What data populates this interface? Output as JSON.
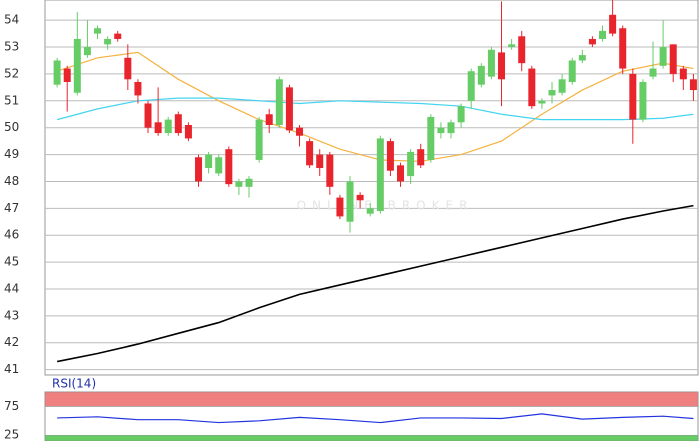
{
  "chart_data": [
    {
      "type": "candlestick",
      "open": [
        51.6,
        52.2,
        51.3,
        52.7,
        53.5,
        53.1,
        53.5,
        52.6,
        51.7,
        50.9,
        50.2,
        49.8,
        50.5,
        50.1,
        48.9,
        48.5,
        48.3,
        49.2,
        47.8,
        47.8,
        48.8,
        50.5,
        50.1,
        51.5,
        50.0,
        49.5,
        49.0,
        49.0,
        47.4,
        46.5,
        47.5,
        46.8,
        46.9,
        49.5,
        48.6,
        48.2,
        49.2,
        48.8,
        49.8,
        49.8,
        50.2,
        51.0,
        51.6,
        51.9,
        52.8,
        53.0,
        53.4,
        52.2,
        50.9,
        51.2,
        51.3,
        51.7,
        52.5,
        53.3,
        53.3,
        54.2,
        53.7,
        52.0,
        50.3,
        51.9,
        52.3,
        53.1,
        52.2,
        51.8
      ],
      "high": [
        52.6,
        52.3,
        54.3,
        54.0,
        53.8,
        53.4,
        53.6,
        53.1,
        51.8,
        51.0,
        51.5,
        50.4,
        50.6,
        50.2,
        49.0,
        49.1,
        49.0,
        49.3,
        48.1,
        48.2,
        50.4,
        50.7,
        51.9,
        51.6,
        50.1,
        49.6,
        49.2,
        49.1,
        47.5,
        48.2,
        47.6,
        47.2,
        49.7,
        49.6,
        48.7,
        49.2,
        49.4,
        50.5,
        50.2,
        50.3,
        50.9,
        52.2,
        52.4,
        53.0,
        54.7,
        53.3,
        53.6,
        52.3,
        51.1,
        51.7,
        52.0,
        52.6,
        52.9,
        53.4,
        53.8,
        54.8,
        53.8,
        52.2,
        51.8,
        53.2,
        54.0,
        53.1,
        52.3,
        52.0
      ],
      "low": [
        51.5,
        50.6,
        51.2,
        52.6,
        53.3,
        52.9,
        53.2,
        51.4,
        50.9,
        49.8,
        49.7,
        49.7,
        49.7,
        49.5,
        47.8,
        48.3,
        48.2,
        47.8,
        47.5,
        47.4,
        48.7,
        49.8,
        50.0,
        49.8,
        49.3,
        48.5,
        48.2,
        47.5,
        46.6,
        46.1,
        47.0,
        46.7,
        46.8,
        48.2,
        47.8,
        47.9,
        48.5,
        48.7,
        49.6,
        49.6,
        50.0,
        50.7,
        51.5,
        51.8,
        50.8,
        52.9,
        52.1,
        50.7,
        50.7,
        50.9,
        51.2,
        51.6,
        52.4,
        53.0,
        53.2,
        53.4,
        52.0,
        49.4,
        50.2,
        51.8,
        52.2,
        51.7,
        51.4,
        51.0
      ],
      "close": [
        52.5,
        51.7,
        53.3,
        53.0,
        53.7,
        53.3,
        53.3,
        51.8,
        51.2,
        50.0,
        49.8,
        50.3,
        49.8,
        49.6,
        48.0,
        49.0,
        48.9,
        47.9,
        48.0,
        48.1,
        50.3,
        50.1,
        51.8,
        49.9,
        49.7,
        48.6,
        48.5,
        47.8,
        46.7,
        48.0,
        47.3,
        47.0,
        49.6,
        48.4,
        48.0,
        49.1,
        48.6,
        50.4,
        50.0,
        50.2,
        50.8,
        52.1,
        52.3,
        52.9,
        51.8,
        53.1,
        52.4,
        50.8,
        51.0,
        51.4,
        51.8,
        52.5,
        52.7,
        53.1,
        53.6,
        53.5,
        52.2,
        50.3,
        51.7,
        52.2,
        53.0,
        52.0,
        51.8,
        51.4
      ],
      "up_color": "#66cc66",
      "down_color": "#e8242c",
      "lines": [
        {
          "color": "#000000",
          "x": [
            0,
            4,
            8,
            12,
            16,
            20,
            24,
            28,
            32,
            36,
            40,
            44,
            48,
            52,
            56,
            60,
            63
          ],
          "values": [
            41.3,
            41.6,
            41.95,
            42.35,
            42.75,
            43.3,
            43.8,
            44.15,
            44.5,
            44.85,
            45.2,
            45.55,
            45.9,
            46.25,
            46.6,
            46.9,
            47.1
          ]
        },
        {
          "color": "#f5b240",
          "x": [
            0,
            4,
            8,
            12,
            16,
            20,
            24,
            28,
            32,
            36,
            40,
            44,
            48,
            52,
            56,
            60,
            63
          ],
          "values": [
            52.1,
            52.6,
            52.8,
            51.8,
            51.0,
            50.3,
            49.8,
            49.2,
            48.8,
            48.75,
            49.0,
            49.5,
            50.5,
            51.4,
            52.1,
            52.4,
            52.2
          ]
        },
        {
          "color": "#44d4f0",
          "x": [
            0,
            4,
            8,
            12,
            16,
            20,
            24,
            28,
            32,
            36,
            40,
            44,
            48,
            52,
            56,
            60,
            63
          ],
          "values": [
            50.3,
            50.7,
            51.0,
            51.1,
            51.1,
            51.0,
            50.9,
            51.0,
            50.95,
            50.9,
            50.8,
            50.5,
            50.3,
            50.3,
            50.3,
            50.35,
            50.5
          ]
        }
      ],
      "ylim": [
        40.8,
        54.75
      ],
      "yticks": [
        41,
        42,
        43,
        44,
        45,
        46,
        47,
        48,
        49,
        50,
        51,
        52,
        53,
        54
      ],
      "grid": true,
      "watermark": "ONLINE BROKER"
    },
    {
      "type": "line",
      "title": "RSI(14)",
      "color": "#2233dd",
      "x": [
        0,
        4,
        8,
        12,
        16,
        20,
        24,
        28,
        32,
        36,
        40,
        44,
        48,
        52,
        56,
        60,
        63
      ],
      "values": [
        55,
        57,
        52,
        52,
        47,
        50,
        56,
        52,
        47,
        55,
        55,
        54,
        62,
        53,
        56,
        58,
        54
      ],
      "ylim": [
        15,
        100
      ],
      "yticks": [
        25,
        75
      ],
      "bands": [
        {
          "range": [
            75,
            100
          ],
          "color": "#f08080"
        },
        {
          "range": [
            0,
            25
          ],
          "color": "#66cc66"
        }
      ]
    }
  ]
}
